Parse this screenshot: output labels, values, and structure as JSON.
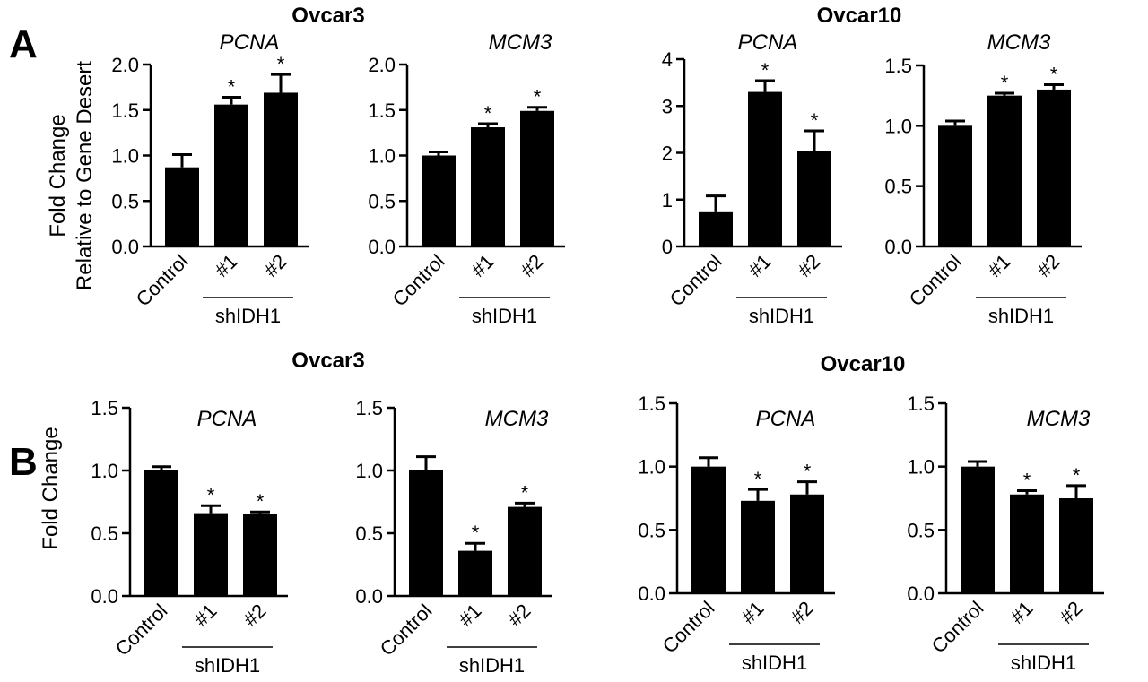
{
  "panel_labels": [
    "A",
    "B"
  ],
  "cell_line_titles": {
    "a_left": "Ovcar3",
    "a_right": "Ovcar10",
    "b_left": "Ovcar3",
    "b_right": "Ovcar10"
  },
  "ylabel_a_line1": "Fold Change",
  "ylabel_a_line2": "Relative to Gene Desert",
  "ylabel_b": "Fold Change",
  "group_label": "shIDH1",
  "significance_mark": "*",
  "bar_color": "#000000",
  "chart_data": [
    {
      "type": "bar",
      "panel": "A",
      "title": "PCNA",
      "categories": [
        "Control",
        "#1",
        "#2"
      ],
      "values": [
        0.87,
        1.56,
        1.69
      ],
      "errors": [
        0.14,
        0.08,
        0.2
      ],
      "significant": [
        false,
        true,
        true
      ],
      "ylim": [
        0,
        2.0
      ],
      "ticks": [
        "0.0",
        "0.5",
        "1.0",
        "1.5",
        "2.0"
      ],
      "tick_values": [
        0,
        0.5,
        1.0,
        1.5,
        2.0
      ]
    },
    {
      "type": "bar",
      "panel": "A",
      "title": "MCM3",
      "categories": [
        "Control",
        "#1",
        "#2"
      ],
      "values": [
        1.0,
        1.31,
        1.49
      ],
      "errors": [
        0.04,
        0.04,
        0.04
      ],
      "significant": [
        false,
        true,
        true
      ],
      "ylim": [
        0,
        2.0
      ],
      "ticks": [
        "0.0",
        "0.5",
        "1.0",
        "1.5",
        "2.0"
      ],
      "tick_values": [
        0,
        0.5,
        1.0,
        1.5,
        2.0
      ]
    },
    {
      "type": "bar",
      "panel": "A",
      "title": "PCNA",
      "categories": [
        "Control",
        "#1",
        "#2"
      ],
      "values": [
        0.75,
        3.3,
        2.03
      ],
      "errors": [
        0.33,
        0.24,
        0.44
      ],
      "significant": [
        false,
        true,
        true
      ],
      "ylim": [
        0,
        4
      ],
      "ticks": [
        "0",
        "1",
        "2",
        "3",
        "4"
      ],
      "tick_values": [
        0,
        1,
        2,
        3,
        4
      ]
    },
    {
      "type": "bar",
      "panel": "A",
      "title": "MCM3",
      "categories": [
        "Control",
        "#1",
        "#2"
      ],
      "values": [
        1.0,
        1.25,
        1.3
      ],
      "errors": [
        0.04,
        0.02,
        0.04
      ],
      "significant": [
        false,
        true,
        true
      ],
      "ylim": [
        0,
        1.5
      ],
      "ticks": [
        "0.0",
        "0.5",
        "1.0",
        "1.5"
      ],
      "tick_values": [
        0,
        0.5,
        1.0,
        1.5
      ]
    },
    {
      "type": "bar",
      "panel": "B",
      "title": "PCNA",
      "categories": [
        "Control",
        "#1",
        "#2"
      ],
      "values": [
        1.0,
        0.66,
        0.65
      ],
      "errors": [
        0.03,
        0.06,
        0.02
      ],
      "significant": [
        false,
        true,
        true
      ],
      "ylim": [
        0,
        1.5
      ],
      "ticks": [
        "0.0",
        "0.5",
        "1.0",
        "1.5"
      ],
      "tick_values": [
        0,
        0.5,
        1.0,
        1.5
      ]
    },
    {
      "type": "bar",
      "panel": "B",
      "title": "MCM3",
      "categories": [
        "Control",
        "#1",
        "#2"
      ],
      "values": [
        1.0,
        0.36,
        0.71
      ],
      "errors": [
        0.11,
        0.06,
        0.03
      ],
      "significant": [
        false,
        true,
        true
      ],
      "ylim": [
        0,
        1.5
      ],
      "ticks": [
        "0.0",
        "0.5",
        "1.0",
        "1.5"
      ],
      "tick_values": [
        0,
        0.5,
        1.0,
        1.5
      ]
    },
    {
      "type": "bar",
      "panel": "B",
      "title": "PCNA",
      "categories": [
        "Control",
        "#1",
        "#2"
      ],
      "values": [
        1.0,
        0.73,
        0.78
      ],
      "errors": [
        0.07,
        0.09,
        0.1
      ],
      "significant": [
        false,
        true,
        true
      ],
      "ylim": [
        0,
        1.5
      ],
      "ticks": [
        "0.0",
        "0.5",
        "1.0",
        "1.5"
      ],
      "tick_values": [
        0,
        0.5,
        1.0,
        1.5
      ]
    },
    {
      "type": "bar",
      "panel": "B",
      "title": "MCM3",
      "categories": [
        "Control",
        "#1",
        "#2"
      ],
      "values": [
        1.0,
        0.78,
        0.75
      ],
      "errors": [
        0.04,
        0.03,
        0.1
      ],
      "significant": [
        false,
        true,
        true
      ],
      "ylim": [
        0,
        1.5
      ],
      "ticks": [
        "0.0",
        "0.5",
        "1.0",
        "1.5"
      ],
      "tick_values": [
        0,
        0.5,
        1.0,
        1.5
      ]
    }
  ]
}
